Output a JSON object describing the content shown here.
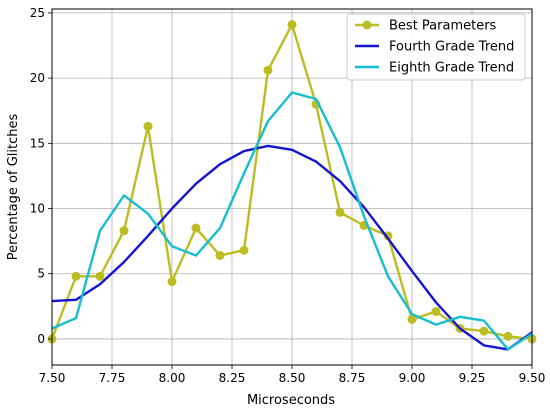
{
  "chart_data": {
    "type": "line",
    "xlabel": "Microseconds",
    "ylabel": "Percentage of Glitches",
    "xlim": [
      7.5,
      9.5
    ],
    "ylim": [
      -2.0,
      25.3
    ],
    "xticks": [
      7.5,
      7.75,
      8.0,
      8.25,
      8.5,
      8.75,
      9.0,
      9.25,
      9.5
    ],
    "xtick_labels": [
      "7.50",
      "7.75",
      "8.00",
      "8.25",
      "8.50",
      "8.75",
      "9.00",
      "9.25",
      "9.50"
    ],
    "yticks": [
      0,
      5,
      10,
      15,
      20,
      25
    ],
    "ytick_labels": [
      "0",
      "5",
      "10",
      "15",
      "20",
      "25"
    ],
    "grid": true,
    "legend_position": "top-right",
    "x": [
      7.5,
      7.6,
      7.7,
      7.8,
      7.9,
      8.0,
      8.1,
      8.2,
      8.3,
      8.4,
      8.5,
      8.6,
      8.7,
      8.8,
      8.9,
      9.0,
      9.1,
      9.2,
      9.3,
      9.4,
      9.5
    ],
    "series": [
      {
        "name": "Best Parameters",
        "color": "#bcbd22",
        "marker": "circle",
        "values": [
          0.0,
          4.8,
          4.8,
          8.3,
          16.3,
          4.4,
          8.5,
          6.4,
          6.8,
          20.6,
          24.1,
          18.0,
          9.7,
          8.7,
          7.9,
          1.5,
          2.1,
          0.8,
          0.6,
          0.2,
          0.0
        ]
      },
      {
        "name": "Fourth Grade Trend",
        "color": "#1414d2",
        "marker": "none",
        "values": [
          2.9,
          3.0,
          4.2,
          5.9,
          7.9,
          10.0,
          11.9,
          13.4,
          14.4,
          14.8,
          14.5,
          13.6,
          12.1,
          10.1,
          7.7,
          5.2,
          2.8,
          0.8,
          -0.5,
          -0.8,
          0.5
        ]
      },
      {
        "name": "Eighth Grade Trend",
        "color": "#17becf",
        "marker": "none",
        "values": [
          0.8,
          1.6,
          8.3,
          11.0,
          9.6,
          7.1,
          6.4,
          8.5,
          12.7,
          16.7,
          18.9,
          18.4,
          14.7,
          9.4,
          4.8,
          1.9,
          1.1,
          1.7,
          1.4,
          -0.8,
          0.4
        ]
      }
    ]
  }
}
